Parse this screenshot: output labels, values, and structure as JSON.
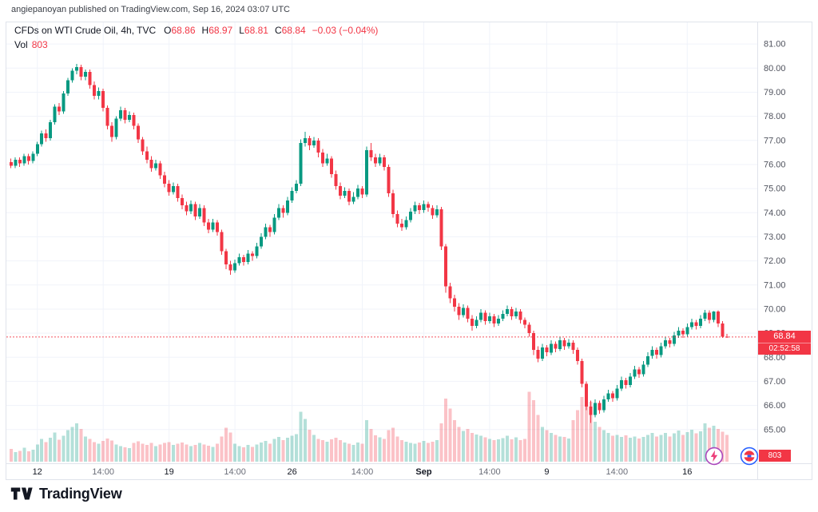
{
  "attribution": "angiepanoyan published on TradingView.com, Sep 16, 2024 03:07 UTC",
  "header": {
    "symbol_title": "CFDs on WTI Crude Oil, 4h, TVC",
    "o_label": "O",
    "o": "68.86",
    "h_label": "H",
    "h": "68.97",
    "l_label": "L",
    "l": "68.81",
    "c_label": "C",
    "c": "68.84",
    "change": "−0.03 (−0.04%)",
    "vol_label": "Vol",
    "vol_value": "803"
  },
  "footer": {
    "brand": "TradingView"
  },
  "colors": {
    "up": "#089981",
    "down": "#f23645",
    "up_vol": "rgba(8,153,129,0.30)",
    "down_vol": "rgba(242,54,69,0.30)",
    "badge": "#f23645",
    "day_label": "#131722",
    "minor_label": "#6a6d78"
  },
  "chart_data": {
    "type": "candlestick",
    "title": "CFDs on WTI Crude Oil, 4h, TVC",
    "symbol": "CFDs on WTI Crude Oil",
    "interval": "4h",
    "exchange": "TVC",
    "last_price": 68.84,
    "bar_countdown": "02:52:58",
    "current_volume": 803,
    "volume_scale_max": 2400,
    "price_range": [
      63.6,
      81.9
    ],
    "price_axis_ticks": [
      81,
      80,
      79,
      78,
      77,
      76,
      75,
      74,
      73,
      72,
      71,
      70,
      69,
      68,
      67,
      66,
      65
    ],
    "time_labels": [
      {
        "i": 6,
        "t": "12"
      },
      {
        "i": 21,
        "t": "14:00",
        "minor": true
      },
      {
        "i": 36,
        "t": "19"
      },
      {
        "i": 51,
        "t": "14:00",
        "minor": true
      },
      {
        "i": 64,
        "t": "26"
      },
      {
        "i": 80,
        "t": "14:00",
        "minor": true
      },
      {
        "i": 94,
        "t": "Sep",
        "bold": true
      },
      {
        "i": 109,
        "t": "14:00",
        "minor": true
      },
      {
        "i": 122,
        "t": "9"
      },
      {
        "i": 138,
        "t": "14:00",
        "minor": true
      },
      {
        "i": 154,
        "t": "16"
      }
    ],
    "candles": [
      [
        76.1,
        76.25,
        75.85,
        75.95,
        380
      ],
      [
        75.95,
        76.3,
        75.85,
        76.2,
        290
      ],
      [
        76.2,
        76.3,
        75.9,
        76.05,
        320
      ],
      [
        76.05,
        76.45,
        75.95,
        76.35,
        420
      ],
      [
        76.35,
        76.45,
        76.0,
        76.15,
        310
      ],
      [
        76.15,
        76.55,
        76.05,
        76.45,
        360
      ],
      [
        76.45,
        76.95,
        76.35,
        76.85,
        520
      ],
      [
        76.85,
        77.4,
        76.75,
        77.3,
        680
      ],
      [
        77.3,
        77.45,
        76.95,
        77.1,
        590
      ],
      [
        77.1,
        77.85,
        77.0,
        77.75,
        720
      ],
      [
        77.75,
        78.5,
        77.65,
        78.4,
        880
      ],
      [
        78.4,
        78.55,
        78.05,
        78.2,
        660
      ],
      [
        78.2,
        79.05,
        78.1,
        78.95,
        780
      ],
      [
        78.95,
        79.6,
        78.85,
        79.5,
        950
      ],
      [
        79.5,
        80.0,
        79.4,
        79.9,
        1050
      ],
      [
        79.9,
        80.17,
        79.75,
        80.05,
        1150
      ],
      [
        80.05,
        80.15,
        79.5,
        79.65,
        980
      ],
      [
        79.65,
        79.95,
        79.5,
        79.85,
        760
      ],
      [
        79.85,
        79.95,
        79.15,
        79.3,
        690
      ],
      [
        79.3,
        79.45,
        78.7,
        78.85,
        590
      ],
      [
        78.85,
        79.2,
        78.7,
        79.05,
        540
      ],
      [
        79.05,
        79.15,
        78.2,
        78.35,
        620
      ],
      [
        78.35,
        78.45,
        77.45,
        77.6,
        700
      ],
      [
        77.6,
        77.75,
        76.95,
        77.15,
        640
      ],
      [
        77.15,
        78.0,
        77.05,
        77.9,
        520
      ],
      [
        77.9,
        78.4,
        77.8,
        78.25,
        470
      ],
      [
        78.25,
        78.35,
        77.7,
        77.85,
        430
      ],
      [
        77.85,
        78.2,
        77.75,
        78.05,
        410
      ],
      [
        78.05,
        78.15,
        77.45,
        77.6,
        560
      ],
      [
        77.6,
        77.7,
        76.9,
        77.05,
        610
      ],
      [
        77.05,
        77.15,
        76.4,
        76.55,
        540
      ],
      [
        76.55,
        76.75,
        76.05,
        76.2,
        500
      ],
      [
        76.2,
        76.35,
        75.7,
        75.85,
        570
      ],
      [
        75.85,
        76.2,
        75.75,
        76.05,
        470
      ],
      [
        76.05,
        76.15,
        75.4,
        75.55,
        520
      ],
      [
        75.55,
        75.7,
        75.05,
        75.2,
        560
      ],
      [
        75.2,
        75.35,
        74.7,
        74.85,
        590
      ],
      [
        74.85,
        75.25,
        74.75,
        75.1,
        500
      ],
      [
        75.1,
        75.2,
        74.45,
        74.6,
        540
      ],
      [
        74.6,
        74.75,
        74.15,
        74.3,
        580
      ],
      [
        74.3,
        74.45,
        73.9,
        74.05,
        520
      ],
      [
        74.05,
        74.5,
        73.95,
        74.35,
        470
      ],
      [
        74.35,
        74.45,
        73.7,
        73.85,
        500
      ],
      [
        73.85,
        74.35,
        73.75,
        74.2,
        560
      ],
      [
        74.2,
        74.3,
        73.45,
        73.6,
        520
      ],
      [
        73.6,
        73.75,
        73.15,
        73.3,
        480
      ],
      [
        73.3,
        73.75,
        73.2,
        73.6,
        450
      ],
      [
        73.6,
        73.7,
        73.05,
        73.2,
        540
      ],
      [
        73.2,
        73.3,
        72.25,
        72.4,
        760
      ],
      [
        72.4,
        72.5,
        71.65,
        71.85,
        1020
      ],
      [
        71.85,
        72.0,
        71.42,
        71.6,
        880
      ],
      [
        71.6,
        72.05,
        71.5,
        71.9,
        540
      ],
      [
        71.9,
        72.3,
        71.8,
        72.15,
        470
      ],
      [
        72.15,
        72.25,
        71.8,
        71.95,
        430
      ],
      [
        71.95,
        72.45,
        71.85,
        72.3,
        500
      ],
      [
        72.3,
        72.4,
        72.0,
        72.2,
        450
      ],
      [
        72.2,
        72.75,
        72.1,
        72.6,
        520
      ],
      [
        72.6,
        73.15,
        72.5,
        73.0,
        580
      ],
      [
        73.0,
        73.55,
        72.9,
        73.4,
        630
      ],
      [
        73.4,
        73.5,
        73.0,
        73.2,
        540
      ],
      [
        73.2,
        73.95,
        73.1,
        73.8,
        680
      ],
      [
        73.8,
        74.35,
        73.7,
        74.2,
        740
      ],
      [
        74.2,
        74.3,
        73.8,
        74.0,
        650
      ],
      [
        74.0,
        74.65,
        73.9,
        74.5,
        720
      ],
      [
        74.5,
        75.05,
        74.4,
        74.9,
        780
      ],
      [
        74.9,
        75.35,
        74.8,
        75.2,
        830
      ],
      [
        75.2,
        77.05,
        75.1,
        76.9,
        1500
      ],
      [
        76.9,
        77.35,
        76.75,
        77.1,
        1280
      ],
      [
        77.1,
        77.2,
        76.6,
        76.8,
        960
      ],
      [
        76.8,
        77.15,
        76.7,
        77.0,
        800
      ],
      [
        77.0,
        77.1,
        76.3,
        76.5,
        690
      ],
      [
        76.5,
        76.65,
        75.9,
        76.05,
        650
      ],
      [
        76.05,
        76.45,
        75.95,
        76.25,
        600
      ],
      [
        76.25,
        76.35,
        75.45,
        75.6,
        670
      ],
      [
        75.6,
        75.75,
        74.95,
        75.1,
        720
      ],
      [
        75.1,
        75.25,
        74.55,
        74.7,
        650
      ],
      [
        74.7,
        75.05,
        74.6,
        74.9,
        580
      ],
      [
        74.9,
        75.0,
        74.3,
        74.45,
        540
      ],
      [
        74.45,
        74.85,
        74.35,
        74.65,
        500
      ],
      [
        74.65,
        75.15,
        74.55,
        75.0,
        580
      ],
      [
        75.0,
        75.1,
        74.6,
        74.75,
        540
      ],
      [
        74.75,
        76.75,
        74.65,
        76.6,
        1250
      ],
      [
        76.6,
        76.9,
        76.15,
        76.3,
        980
      ],
      [
        76.3,
        76.45,
        75.9,
        76.05,
        790
      ],
      [
        76.05,
        76.45,
        75.95,
        76.3,
        730
      ],
      [
        76.3,
        76.4,
        75.75,
        75.9,
        690
      ],
      [
        75.9,
        76.0,
        74.65,
        74.8,
        950
      ],
      [
        74.8,
        74.95,
        73.8,
        73.95,
        1020
      ],
      [
        73.95,
        74.1,
        73.4,
        73.55,
        760
      ],
      [
        73.55,
        73.75,
        73.25,
        73.4,
        650
      ],
      [
        73.4,
        73.85,
        73.3,
        73.7,
        600
      ],
      [
        73.7,
        74.2,
        73.6,
        74.05,
        560
      ],
      [
        74.05,
        74.45,
        73.95,
        74.3,
        540
      ],
      [
        74.3,
        74.4,
        73.95,
        74.1,
        580
      ],
      [
        74.1,
        74.5,
        74.0,
        74.35,
        620
      ],
      [
        74.35,
        74.45,
        74.05,
        74.2,
        560
      ],
      [
        74.2,
        74.3,
        73.75,
        73.9,
        600
      ],
      [
        73.9,
        74.3,
        73.8,
        74.15,
        650
      ],
      [
        74.15,
        74.25,
        72.45,
        72.6,
        1150
      ],
      [
        72.6,
        72.7,
        70.68,
        70.95,
        1900
      ],
      [
        70.95,
        71.1,
        70.25,
        70.45,
        1600
      ],
      [
        70.45,
        70.6,
        69.9,
        70.1,
        1250
      ],
      [
        70.1,
        70.25,
        69.55,
        69.75,
        1050
      ],
      [
        69.75,
        70.2,
        69.65,
        70.05,
        920
      ],
      [
        70.05,
        70.15,
        69.45,
        69.6,
        980
      ],
      [
        69.6,
        69.75,
        69.1,
        69.3,
        870
      ],
      [
        69.3,
        69.7,
        69.2,
        69.55,
        820
      ],
      [
        69.55,
        70.0,
        69.45,
        69.85,
        780
      ],
      [
        69.85,
        69.95,
        69.35,
        69.5,
        730
      ],
      [
        69.5,
        69.85,
        69.4,
        69.7,
        690
      ],
      [
        69.7,
        69.8,
        69.25,
        69.4,
        650
      ],
      [
        69.4,
        69.75,
        69.3,
        69.6,
        670
      ],
      [
        69.6,
        69.95,
        69.5,
        69.8,
        710
      ],
      [
        69.8,
        70.15,
        69.7,
        70.0,
        780
      ],
      [
        70.0,
        70.1,
        69.55,
        69.7,
        670
      ],
      [
        69.7,
        70.05,
        69.6,
        69.9,
        730
      ],
      [
        69.9,
        70.0,
        69.4,
        69.55,
        650
      ],
      [
        69.55,
        69.65,
        69.2,
        69.35,
        690
      ],
      [
        69.35,
        69.45,
        68.85,
        69.0,
        2100
      ],
      [
        69.0,
        69.1,
        68.1,
        68.3,
        1850
      ],
      [
        68.3,
        68.45,
        67.8,
        67.95,
        1400
      ],
      [
        67.95,
        68.55,
        67.85,
        68.4,
        1050
      ],
      [
        68.4,
        68.5,
        68.05,
        68.2,
        950
      ],
      [
        68.2,
        68.7,
        68.1,
        68.55,
        860
      ],
      [
        68.55,
        68.65,
        68.2,
        68.35,
        810
      ],
      [
        68.35,
        68.85,
        68.25,
        68.7,
        760
      ],
      [
        68.7,
        68.8,
        68.3,
        68.45,
        740
      ],
      [
        68.45,
        68.75,
        68.35,
        68.6,
        700
      ],
      [
        68.6,
        68.7,
        68.15,
        68.3,
        1250
      ],
      [
        68.3,
        68.4,
        67.7,
        67.85,
        1550
      ],
      [
        67.85,
        67.95,
        66.75,
        66.9,
        1950
      ],
      [
        66.9,
        67.0,
        65.8,
        65.95,
        2300
      ],
      [
        65.95,
        66.2,
        65.27,
        65.6,
        1800
      ],
      [
        65.6,
        66.25,
        65.5,
        66.1,
        1200
      ],
      [
        66.1,
        66.2,
        65.65,
        65.8,
        1050
      ],
      [
        65.8,
        66.4,
        65.7,
        66.25,
        950
      ],
      [
        66.25,
        66.65,
        66.15,
        66.5,
        860
      ],
      [
        66.5,
        66.6,
        66.15,
        66.3,
        780
      ],
      [
        66.3,
        66.85,
        66.2,
        66.7,
        810
      ],
      [
        66.7,
        67.2,
        66.6,
        67.05,
        750
      ],
      [
        67.05,
        67.15,
        66.7,
        66.85,
        790
      ],
      [
        66.85,
        67.35,
        66.75,
        67.2,
        720
      ],
      [
        67.2,
        67.65,
        67.1,
        67.5,
        760
      ],
      [
        67.5,
        67.6,
        67.15,
        67.3,
        700
      ],
      [
        67.3,
        67.85,
        67.2,
        67.7,
        740
      ],
      [
        67.7,
        68.2,
        67.6,
        68.05,
        810
      ],
      [
        68.05,
        68.45,
        67.95,
        68.3,
        860
      ],
      [
        68.3,
        68.4,
        67.95,
        68.1,
        760
      ],
      [
        68.1,
        68.6,
        68.0,
        68.45,
        800
      ],
      [
        68.45,
        68.85,
        68.35,
        68.7,
        870
      ],
      [
        68.7,
        68.8,
        68.4,
        68.55,
        760
      ],
      [
        68.55,
        69.05,
        68.45,
        68.9,
        850
      ],
      [
        68.9,
        69.25,
        68.8,
        69.1,
        940
      ],
      [
        69.1,
        69.2,
        68.8,
        68.95,
        800
      ],
      [
        68.95,
        69.4,
        68.85,
        69.25,
        890
      ],
      [
        69.25,
        69.6,
        69.15,
        69.45,
        960
      ],
      [
        69.45,
        69.55,
        69.15,
        69.3,
        850
      ],
      [
        69.3,
        69.75,
        69.2,
        69.6,
        910
      ],
      [
        69.6,
        69.97,
        69.5,
        69.85,
        1150
      ],
      [
        69.85,
        69.95,
        69.4,
        69.55,
        1020
      ],
      [
        69.55,
        69.92,
        69.45,
        69.9,
        1080
      ],
      [
        69.9,
        69.95,
        69.25,
        69.4,
        980
      ],
      [
        69.4,
        69.5,
        68.8,
        68.86,
        900
      ],
      [
        68.86,
        68.97,
        68.81,
        68.84,
        803
      ]
    ]
  }
}
